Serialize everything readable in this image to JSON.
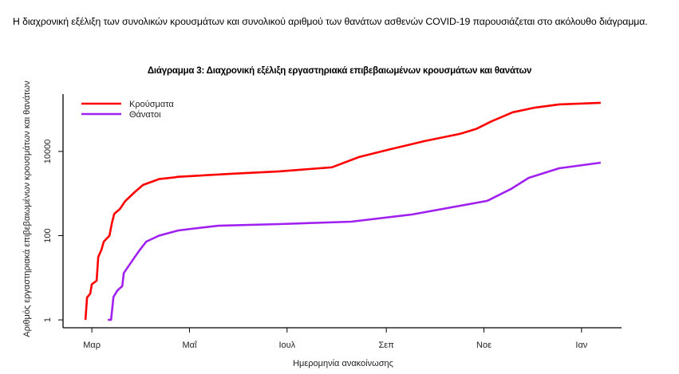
{
  "document": {
    "paragraph": "Η διαχρονική εξέλιξη των συνολικών κρουσμάτων και συνολικού αριθμού των θανάτων ασθενών COVID-19 παρουσιάζεται στο ακόλουθο διάγραμμα."
  },
  "chart_data": {
    "type": "line",
    "title": "Διάγραμμα 3: Διαχρονική εξέλιξη εργαστηριακά επιβεβαιωμένων κρουσμάτων και θανάτων",
    "xlabel": "Ημερομηνία ανακοίνωσης",
    "ylabel": "Αριθμός εργαστηριακά επιβεβαιωμένων κρουσμάτων και θανάτων",
    "x_units": "days since start of Μαρ",
    "xlim": [
      -18,
      331
    ],
    "y_scale": "log10",
    "ylim": [
      0.65,
      230000
    ],
    "x_ticks": [
      {
        "label": "Μαρ",
        "day": 0
      },
      {
        "label": "Μαΐ",
        "day": 61
      },
      {
        "label": "Ιουλ",
        "day": 122
      },
      {
        "label": "Σεπ",
        "day": 184
      },
      {
        "label": "Νοε",
        "day": 245
      },
      {
        "label": "Ιαν",
        "day": 306
      }
    ],
    "y_ticks": [
      {
        "label": "1",
        "value": 1
      },
      {
        "label": "100",
        "value": 100
      },
      {
        "label": "10000",
        "value": 10000
      }
    ],
    "legend_position": "top-left",
    "grid": false,
    "series": [
      {
        "name": "Κρούσματα",
        "color": "#ff0000",
        "x": [
          -4,
          -3,
          -1,
          0,
          3,
          4,
          6,
          7.5,
          11,
          12.5,
          14,
          17.5,
          21,
          27,
          32,
          42,
          51,
          54,
          87,
          117,
          150,
          167,
          187,
          208,
          230,
          240,
          250,
          263,
          277,
          292,
          318
        ],
        "y": [
          1,
          3.4,
          4.2,
          7,
          8.5,
          31,
          46,
          72,
          100,
          197,
          330,
          430,
          670,
          1100,
          1600,
          2200,
          2400,
          2500,
          2950,
          3360,
          4200,
          7370,
          11400,
          17600,
          26100,
          34000,
          52500,
          85000,
          110000,
          131000,
          143000
        ]
      },
      {
        "name": "Θάνατοι",
        "color": "#a020f0",
        "x": [
          10,
          12,
          13.5,
          16,
          19,
          20,
          26,
          30,
          34,
          42,
          54,
          62,
          79,
          117,
          162,
          200,
          247,
          262,
          273,
          292,
          318
        ],
        "y": [
          1,
          1,
          3.5,
          5,
          6.3,
          13,
          28,
          46,
          72,
          100,
          133,
          145,
          172,
          188,
          215,
          318,
          670,
          1290,
          2360,
          3990,
          5400
        ]
      }
    ]
  }
}
